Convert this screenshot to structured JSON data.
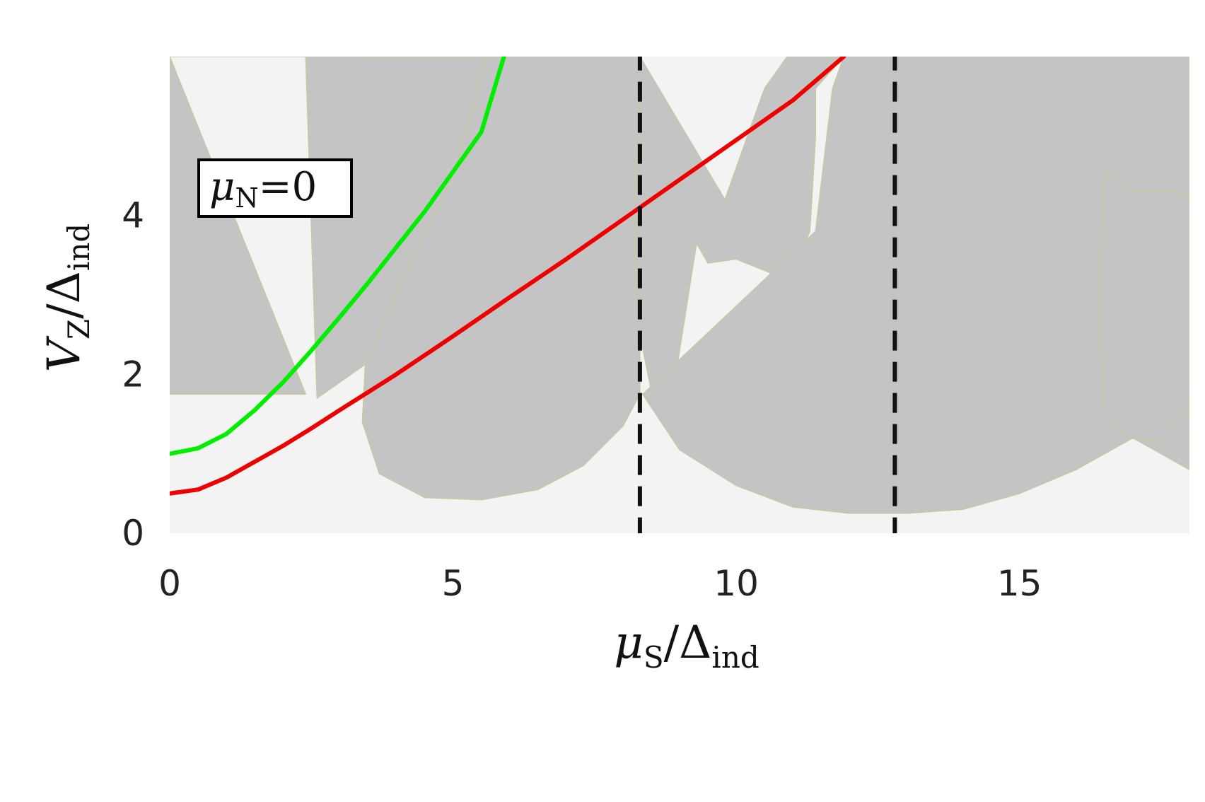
{
  "chart_data": {
    "type": "heatmap",
    "title": "",
    "xlabel": {
      "symbol": "μ",
      "sub": "S",
      "sep": "/Δ",
      "sub2": "ind"
    },
    "ylabel": {
      "symbol": "V",
      "sub": "Z",
      "sep": "/Δ",
      "sub2": "ind"
    },
    "xlim": [
      0,
      18
    ],
    "ylim": [
      0,
      6
    ],
    "x_ticks": [
      0,
      5,
      10,
      15
    ],
    "y_ticks": [
      0,
      2,
      4
    ],
    "x_tick_labels": [
      "0",
      "5",
      "10",
      "15"
    ],
    "y_tick_labels": [
      "0",
      "2",
      "4"
    ],
    "grid": false,
    "colors": {
      "region_a": "#c4c4c4",
      "region_b": "#f3f3f3",
      "green_line": "#00ee00",
      "red_line": "#ee0000",
      "dashed": "#111111"
    },
    "annotation": {
      "symbol": "μ",
      "sub": "N",
      "rest": "=0"
    },
    "series": [
      {
        "color": "green",
        "style": "solid",
        "x": [
          0,
          0.5,
          1,
          1.5,
          2,
          2.5,
          3,
          3.5,
          4,
          4.5,
          5,
          5.5,
          5.9
        ],
        "y": [
          1.0,
          1.07,
          1.25,
          1.55,
          1.9,
          2.3,
          2.72,
          3.15,
          3.6,
          4.05,
          4.55,
          5.05,
          6.0
        ]
      },
      {
        "color": "red",
        "style": "solid",
        "x": [
          0,
          0.5,
          1,
          1.5,
          2,
          2.5,
          3,
          4,
          5,
          6,
          7,
          8,
          9,
          10,
          11,
          11.9
        ],
        "y": [
          0.5,
          0.55,
          0.7,
          0.9,
          1.1,
          1.32,
          1.55,
          2.0,
          2.48,
          2.97,
          3.45,
          3.95,
          4.45,
          4.95,
          5.45,
          6.0
        ]
      },
      {
        "color": "black",
        "style": "dashed",
        "x": [
          8.3,
          8.3
        ],
        "y": [
          -0.05,
          6
        ]
      },
      {
        "color": "black",
        "style": "dashed",
        "x": [
          12.8,
          12.8
        ],
        "y": [
          -0.05,
          6
        ]
      }
    ],
    "regions": [
      {
        "fill": "region_a",
        "x": [
          0,
          2.4,
          2.6,
          3.0,
          3.6,
          4.3,
          4.9,
          5.4,
          5.9,
          6.3,
          6.7,
          7.0,
          7.3,
          0
        ],
        "y": [
          6,
          6,
          1.7,
          1.9,
          2.2,
          2.9,
          3.5,
          4.1,
          4.5,
          5.1,
          5.6,
          5.85,
          6,
          6
        ]
      },
      {
        "fill": "region_a",
        "x": [
          0,
          2.4,
          0
        ],
        "y": [
          6,
          1.75,
          1.75
        ]
      },
      {
        "fill": "region_a",
        "x": [
          3.4,
          5.6,
          5.0,
          4.1,
          3.45,
          3.4,
          3.7,
          4.5,
          5.5,
          6.5,
          7.3,
          8.0,
          8.3,
          8.3
        ],
        "y": [
          6,
          6,
          4.5,
          3.2,
          2.1,
          1.4,
          0.75,
          0.45,
          0.42,
          0.55,
          0.85,
          1.35,
          1.75,
          6
        ]
      },
      {
        "fill": "region_a",
        "x": [
          8.3,
          8.2,
          8.3,
          8.5,
          8.8,
          9.2,
          9.3,
          9.5,
          10.0,
          10.7,
          11.0,
          11.3,
          11.4,
          11.4,
          11.9,
          10.9,
          10.5,
          9.8
        ],
        "y": [
          6,
          3.5,
          2.5,
          1.8,
          1.4,
          3.2,
          3.65,
          3.4,
          3.45,
          3.25,
          3.3,
          3.8,
          5.0,
          5.6,
          6,
          6,
          5.6,
          4.2
        ]
      },
      {
        "fill": "region_a",
        "x": [
          8.35,
          9.0,
          10.0,
          11.0,
          12.0,
          13.0,
          14.0,
          15.0,
          16.0,
          17.0,
          18.0,
          18.0,
          17.8,
          17.0,
          16.5,
          16.4,
          16.5,
          16.9,
          17.5,
          18.0,
          18.0,
          11.9,
          11.7,
          11.4
        ],
        "y": [
          1.75,
          1.05,
          0.6,
          0.33,
          0.25,
          0.25,
          0.3,
          0.5,
          0.8,
          1.2,
          0.8,
          4.2,
          4.3,
          4.3,
          4.55,
          2.9,
          1.6,
          1.2,
          1.15,
          1.6,
          6.0,
          6.0,
          5.6,
          3.8
        ]
      }
    ]
  }
}
